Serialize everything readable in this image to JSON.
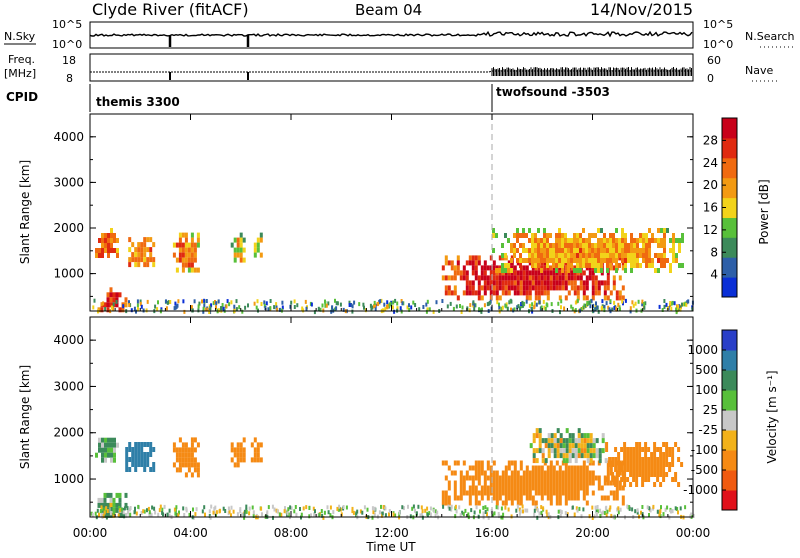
{
  "header": {
    "station": "Clyde River (fitACF)",
    "beam": "Beam 04",
    "date": "14/Nov/2015"
  },
  "strip_top": {
    "left_label": "N.Sky",
    "left_ticks": [
      "10^5",
      "10^0"
    ],
    "right_label": "N.Search",
    "right_ticks": [
      "10^5",
      "10^0"
    ]
  },
  "strip_freq": {
    "left_label_1": "Freq.",
    "left_label_2": "[MHz]",
    "left_ticks": [
      "18",
      "8"
    ],
    "right_label": "Nave",
    "right_ticks": [
      "60",
      "0"
    ]
  },
  "cpid": {
    "label": "CPID",
    "segments": [
      "themis 3300",
      "twofsound -3503"
    ]
  },
  "x_axis": {
    "label": "Time UT",
    "ticks": [
      "00:00",
      "04:00",
      "08:00",
      "12:00",
      "16:00",
      "20:00",
      "00:00"
    ]
  },
  "y_axis": {
    "label": "Slant Range [km]",
    "ticks": [
      "1000",
      "2000",
      "3000",
      "4000"
    ]
  },
  "power_colorbar": {
    "label": "Power [dB]",
    "ticks": [
      "4",
      "8",
      "12",
      "16",
      "20",
      "24",
      "28"
    ],
    "colors": [
      "#0a2fd6",
      "#2d5fa8",
      "#3c8a5a",
      "#58c03a",
      "#f2d31a",
      "#f39a12",
      "#f06a10",
      "#e02a10",
      "#c8001a"
    ]
  },
  "velocity_colorbar": {
    "label": "Velocity [m s⁻¹]",
    "ticks": [
      "1000",
      "500",
      "100",
      "25",
      "-25",
      "-100",
      "-500",
      "-1000"
    ],
    "colors": [
      "#2a3fc8",
      "#2f7fa8",
      "#3c8a5a",
      "#58c03a",
      "#c8c8c8",
      "#f2b21a",
      "#f58a14",
      "#f05a10",
      "#e0101a"
    ]
  },
  "chart_data": {
    "type": "heatmap",
    "title": "Clyde River (fitACF)",
    "xlabel": "Time UT",
    "ylabel": "Slant Range [km]",
    "x_range_hours": [
      0,
      24
    ],
    "y_range_km": [
      180,
      4500
    ],
    "mode_change_hour": 16,
    "panels": [
      {
        "name": "Power [dB]",
        "regions": [
          {
            "t0": 0.2,
            "t1": 1.1,
            "r0": 1400,
            "r1": 2000,
            "value": 24
          },
          {
            "t0": 1.4,
            "t1": 2.5,
            "r0": 1200,
            "r1": 1800,
            "value": 22
          },
          {
            "t0": 3.3,
            "t1": 4.3,
            "r0": 1100,
            "r1": 1900,
            "value": 22
          },
          {
            "t0": 5.6,
            "t1": 6.1,
            "r0": 1300,
            "r1": 1900,
            "value": 18
          },
          {
            "t0": 6.4,
            "t1": 6.8,
            "r0": 1400,
            "r1": 1900,
            "value": 16
          },
          {
            "t0": 0.3,
            "t1": 1.4,
            "r0": 200,
            "r1": 700,
            "value": 26
          },
          {
            "t0": 14.0,
            "t1": 21.2,
            "r0": 500,
            "r1": 1400,
            "value": 28
          },
          {
            "t0": 16.0,
            "t1": 23.6,
            "r0": 1100,
            "r1": 2000,
            "value": 20
          }
        ]
      },
      {
        "name": "Velocity [m s⁻¹]",
        "regions": [
          {
            "t0": 0.2,
            "t1": 1.1,
            "r0": 1400,
            "r1": 2000,
            "value": 100
          },
          {
            "t0": 1.4,
            "t1": 2.5,
            "r0": 1200,
            "r1": 1800,
            "value": 500
          },
          {
            "t0": 3.3,
            "t1": 4.3,
            "r0": 1100,
            "r1": 1900,
            "value": -250
          },
          {
            "t0": 5.6,
            "t1": 6.1,
            "r0": 1300,
            "r1": 1900,
            "value": -250
          },
          {
            "t0": 6.4,
            "t1": 6.8,
            "r0": 1400,
            "r1": 1900,
            "value": -250
          },
          {
            "t0": 0.3,
            "t1": 1.4,
            "r0": 200,
            "r1": 700,
            "value": 100
          },
          {
            "t0": 14.0,
            "t1": 21.2,
            "r0": 500,
            "r1": 1400,
            "value": -250
          },
          {
            "t0": 17.5,
            "t1": 20.5,
            "r0": 1400,
            "r1": 2100,
            "value": 0
          },
          {
            "t0": 20.5,
            "t1": 23.6,
            "r0": 900,
            "r1": 1800,
            "value": -250
          }
        ]
      }
    ]
  }
}
